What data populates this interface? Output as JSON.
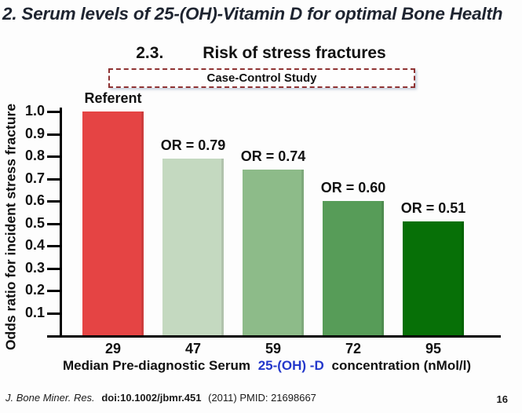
{
  "slide": {
    "title": "2. Serum levels of 25-(OH)-Vitamin D for optimal Bone Health",
    "section_number": "2.3.",
    "section_title": "Risk of stress fractures",
    "study_badge": "Case-Control Study",
    "footer": {
      "journal": "J. Bone Miner. Res.",
      "doi": "doi:10.1002/jbmr.451",
      "rest": "(2011) PMID: 21698667",
      "page_number": "16"
    }
  },
  "chart_data": {
    "type": "bar",
    "title": "Risk of stress fractures",
    "subtitle_badge": "Case-Control Study",
    "categories": [
      "29",
      "47",
      "59",
      "72",
      "95"
    ],
    "values": [
      1.0,
      0.79,
      0.74,
      0.6,
      0.51
    ],
    "bar_labels": [
      "Referent",
      "OR = 0.79",
      "OR = 0.74",
      "OR = 0.60",
      "OR = 0.51"
    ],
    "bar_colors": [
      "#e54444",
      "#c4d9c0",
      "#8dbb89",
      "#579c58",
      "#077007"
    ],
    "ylabel": "Odds ratio for incident stress fracture",
    "xlabel_parts": {
      "pre": "Median Pre-diagnostic Serum",
      "highlight": "25-(OH) -D",
      "post": "concentration (nMol/l)"
    },
    "xlabel_highlight_color": "#2438cb",
    "ylim": [
      0,
      1.0
    ],
    "yticks": [
      "1.0",
      "0.9",
      "0.8",
      "0.7",
      "0.6",
      "0.5",
      "0.4",
      "0.3",
      "0.2",
      "0.1"
    ],
    "grid": false,
    "legend": "none"
  }
}
